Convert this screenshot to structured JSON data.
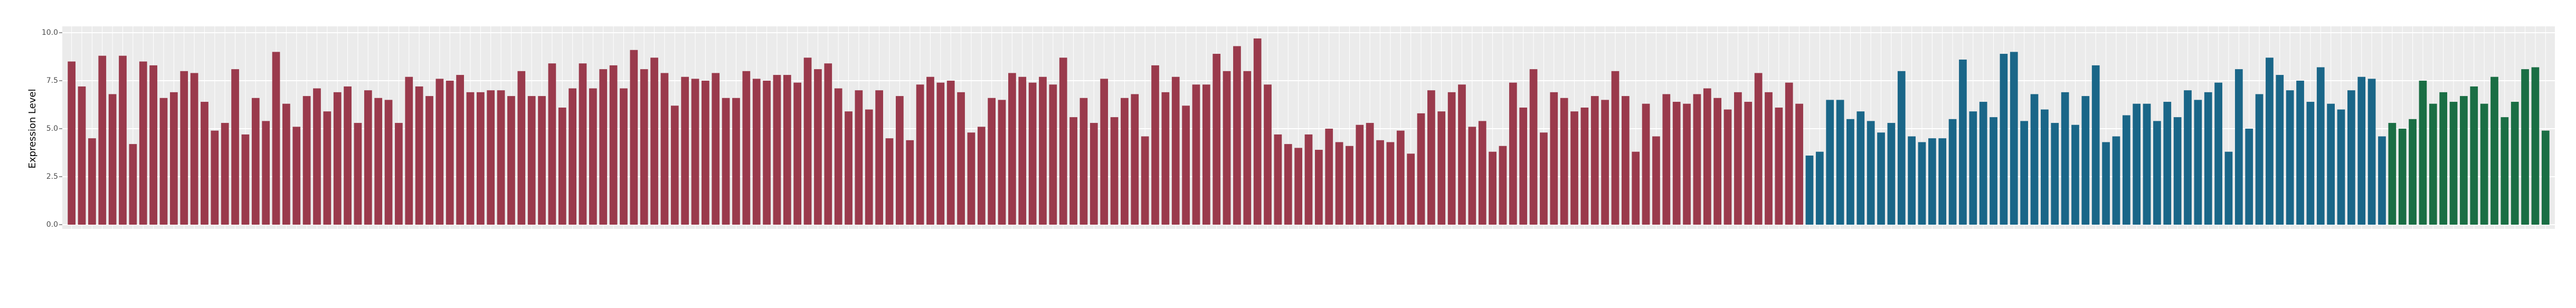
{
  "chart_data": {
    "type": "bar",
    "y_label": "Expression Level",
    "ylim": [
      0,
      10
    ],
    "yticks": [
      {
        "value": 0,
        "label": "0.0"
      },
      {
        "value": 2.5,
        "label": "2.5"
      },
      {
        "value": 5,
        "label": "5.0"
      },
      {
        "value": 7.5,
        "label": "7.5"
      },
      {
        "value": 10,
        "label": "10.0"
      }
    ],
    "grid": true,
    "series": [
      {
        "color": "#9a3a4c",
        "values": [
          8.5,
          7.2,
          4.5,
          8.8,
          6.8,
          8.8,
          4.2,
          8.5,
          8.3,
          6.6,
          6.9,
          8.0,
          7.9,
          6.4,
          4.9,
          5.3,
          8.1,
          4.7,
          6.6,
          5.4,
          9.0,
          6.3,
          5.1,
          6.7,
          7.1,
          5.9,
          6.9,
          7.2,
          5.3,
          7.0,
          6.6,
          6.5,
          5.3,
          7.7,
          7.2,
          6.7,
          7.6,
          7.5,
          7.8,
          6.9,
          6.9,
          7.0,
          7.0,
          6.7,
          8.0,
          6.7,
          6.7,
          8.4,
          6.1,
          7.1,
          8.4,
          7.1,
          8.1,
          8.3,
          7.1,
          9.1,
          8.1,
          8.7,
          7.9,
          6.2,
          7.7,
          7.6,
          7.5,
          7.9,
          6.6,
          6.6,
          8.0,
          7.6,
          7.5,
          7.8,
          7.8,
          7.4,
          8.7,
          8.1,
          8.4,
          7.1,
          5.9,
          7.0,
          6.0,
          7.0,
          4.5,
          6.7,
          4.4,
          7.3,
          7.7,
          7.4,
          7.5,
          6.9,
          4.8,
          5.1,
          6.6,
          6.5,
          7.9,
          7.7,
          7.4,
          7.7,
          7.3,
          8.7,
          5.6,
          6.6,
          5.3,
          7.6,
          5.6,
          6.6,
          6.8,
          4.6,
          8.3,
          6.9,
          7.7,
          6.2,
          7.3,
          7.3,
          8.9,
          8.0,
          9.3,
          8.0,
          9.7,
          7.3,
          4.7,
          4.2,
          4.0,
          4.7,
          3.9,
          5.0,
          4.3,
          4.1,
          5.2,
          5.3,
          4.4,
          4.3,
          4.9,
          3.7,
          5.8,
          7.0,
          5.9,
          6.9,
          7.3,
          5.1,
          5.4,
          3.8,
          4.1,
          7.4,
          6.1,
          8.1,
          4.8,
          6.9,
          6.6,
          5.9,
          6.1,
          6.7,
          6.5,
          8.0,
          6.7,
          3.8,
          6.3,
          4.6,
          6.8,
          6.4,
          6.3,
          6.8,
          7.1,
          6.6,
          6.0,
          6.9,
          6.4,
          7.9,
          6.9,
          6.1,
          7.4,
          6.3
        ]
      },
      {
        "color": "#1a6688",
        "values": [
          3.6,
          3.8,
          6.5,
          6.5,
          5.5,
          5.9,
          5.4,
          4.8,
          5.3,
          8.0,
          4.6,
          4.3,
          4.5,
          4.5,
          5.5,
          8.6,
          5.9,
          6.4,
          5.6,
          8.9,
          9.0,
          5.4,
          6.8,
          6.0,
          5.3,
          6.9,
          5.2,
          6.7,
          8.3,
          4.3,
          4.6,
          5.7,
          6.3,
          6.3,
          5.4,
          6.4,
          5.6,
          7.0,
          6.5,
          6.9,
          7.4,
          3.8,
          8.1,
          5.0,
          6.8,
          8.7,
          7.8,
          7.0,
          7.5,
          6.4,
          8.2,
          6.3,
          6.0,
          7.0,
          7.7,
          7.6,
          4.6
        ]
      },
      {
        "color": "#1a6e44",
        "values": [
          5.3,
          5.0,
          5.5,
          7.5,
          6.3,
          6.9,
          6.4,
          6.7,
          7.2,
          6.3,
          7.7,
          5.6,
          6.4,
          8.1,
          8.2,
          4.9
        ]
      }
    ]
  }
}
